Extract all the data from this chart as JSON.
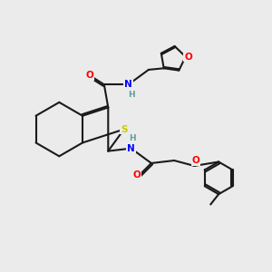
{
  "bg_color": "#ebebeb",
  "bond_color": "#1a1a1a",
  "atom_colors": {
    "N": "#0000ff",
    "O": "#ff0000",
    "S": "#cccc00",
    "H": "#5f9ea0",
    "C": "#1a1a1a"
  }
}
